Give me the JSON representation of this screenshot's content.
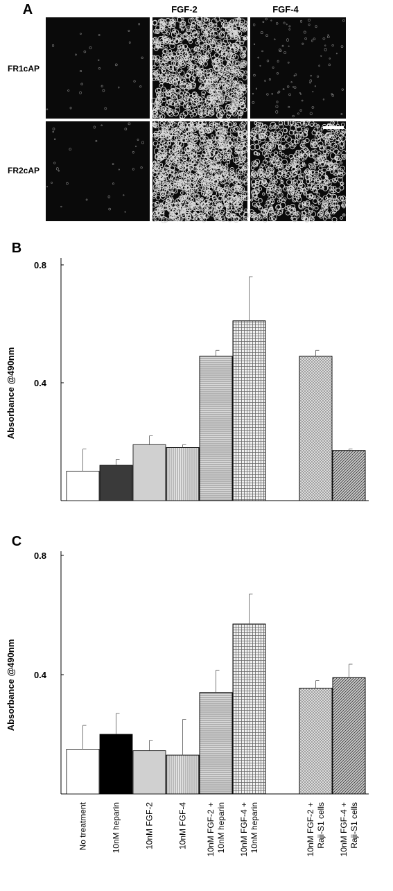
{
  "panel_a": {
    "label": "A",
    "columns": [
      "FGF-2",
      "FGF-4"
    ],
    "rows": [
      "FR1cAP",
      "FR2cAP"
    ]
  },
  "chart_data": [
    {
      "type": "bar",
      "panel": "B",
      "ylabel": "Absorbance @490nm",
      "values": [
        0.1,
        0.12,
        0.19,
        0.18,
        0.49,
        0.61,
        null,
        0.49,
        0.17
      ],
      "errors": [
        0.075,
        0.02,
        0.03,
        0.01,
        0.02,
        0.15,
        null,
        0.02,
        0.005
      ],
      "colors": [
        "#ffffff",
        "#3a3a3a",
        "#d0d0d0",
        "#e6e6e6",
        "#d8d8d8",
        "#f2f2f2",
        null,
        "#e8e8e8",
        "#cfcfcf"
      ],
      "patterns": [
        "none",
        "none",
        "none",
        "vertical",
        "horizontal",
        "grid",
        null,
        "cross",
        "diagonal"
      ],
      "ylim": [
        0,
        0.8
      ],
      "yticks": [
        0.4,
        0.8
      ]
    },
    {
      "type": "bar",
      "panel": "C",
      "ylabel": "Absorbance @490nm",
      "categories": [
        [
          "No treatment"
        ],
        [
          "10nM heparin"
        ],
        [
          "10nM FGF-2"
        ],
        [
          "10nM FGF-4"
        ],
        [
          "10nM FGF-2 +",
          "10nM heparin"
        ],
        [
          "10nM FGF-4 +",
          "10nM heparin"
        ],
        null,
        [
          "10nM FGF-2 +",
          "Raji-S1 cells"
        ],
        [
          "10nM FGF-4 +",
          "Raji-S1 cells"
        ]
      ],
      "values": [
        0.15,
        0.2,
        0.145,
        0.13,
        0.34,
        0.57,
        null,
        0.355,
        0.39
      ],
      "errors": [
        0.08,
        0.07,
        0.035,
        0.12,
        0.075,
        0.1,
        null,
        0.025,
        0.045
      ],
      "colors": [
        "#ffffff",
        "#000000",
        "#d0d0d0",
        "#e6e6e6",
        "#d8d8d8",
        "#f2f2f2",
        null,
        "#e8e8e8",
        "#cfcfcf"
      ],
      "patterns": [
        "none",
        "none",
        "none",
        "vertical",
        "horizontal",
        "grid",
        null,
        "cross",
        "diagonal"
      ],
      "ylim": [
        0,
        0.8
      ],
      "yticks": [
        0.4,
        0.8
      ]
    }
  ]
}
